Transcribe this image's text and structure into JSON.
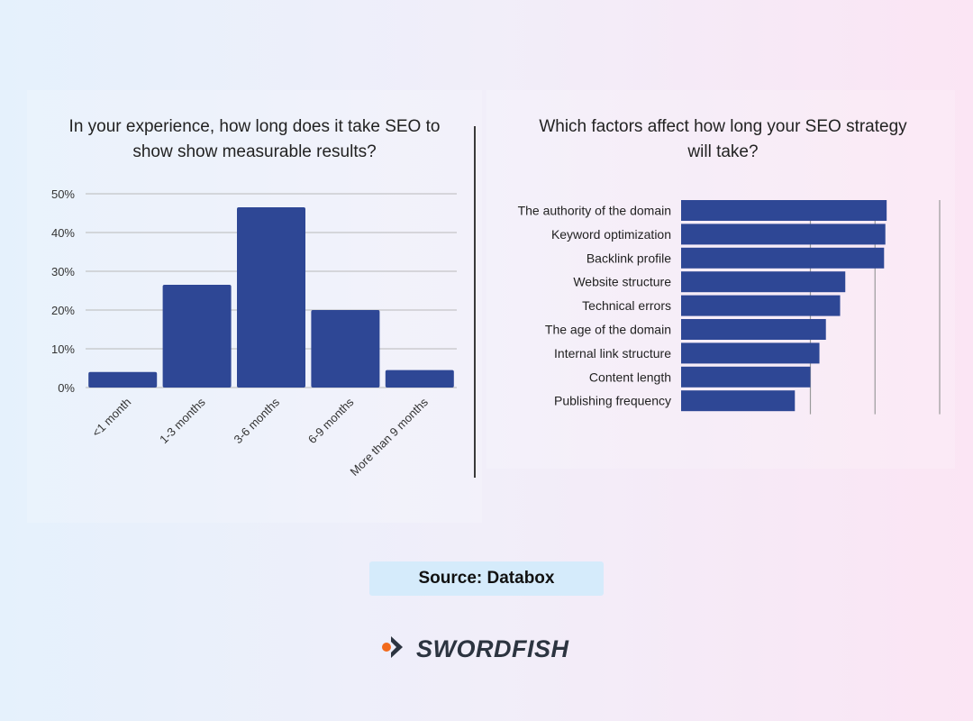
{
  "chart_data": [
    {
      "type": "bar",
      "title": "In your experience, how long does it take SEO to\nshow show measurable results?",
      "categories": [
        "<1 month",
        "1-3 months",
        "3-6 months",
        "6-9 months",
        "More than 9 months"
      ],
      "values": [
        4,
        26.5,
        46.5,
        20,
        4.5
      ],
      "ylim": [
        0,
        50
      ],
      "yticks": [
        "0%",
        "10%",
        "20%",
        "30%",
        "40%",
        "50%"
      ],
      "grid": true,
      "color": "#2e4795"
    },
    {
      "type": "bar",
      "orientation": "horizontal",
      "title": "Which factors affect how long your SEO strategy\nwill take?",
      "categories": [
        "The authority of the domain",
        "Keyword optimization",
        "Backlink profile",
        "Website structure",
        "Technical errors",
        "The age of the domain",
        "Internal link structure",
        "Content length",
        "Publishing frequency"
      ],
      "values": [
        79.5,
        79,
        78.5,
        63.5,
        61.5,
        56,
        53.5,
        50,
        44
      ],
      "xlim": [
        0,
        100
      ],
      "grid": true,
      "color": "#2e4795"
    }
  ],
  "footer": {
    "source_label": "Source: Databox",
    "brand_name": "SWORDFISH"
  },
  "colors": {
    "bar": "#2e4795",
    "logo_dot": "#f26a1b",
    "logo_chevron": "#2c3440"
  }
}
